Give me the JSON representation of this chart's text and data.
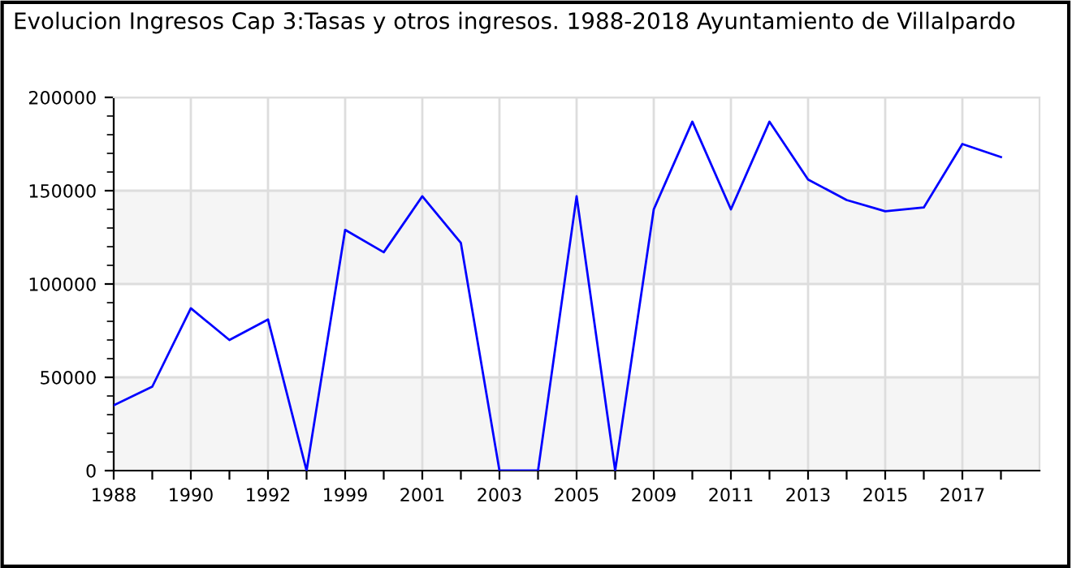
{
  "chart_data": {
    "type": "line",
    "title": "Evolucion Ingresos Cap 3:Tasas y otros ingresos. 1988-2018 Ayuntamiento de Villalpardo",
    "categories": [
      "1988",
      null,
      "1990",
      null,
      "1992",
      null,
      "1999",
      null,
      "2001",
      null,
      "2003",
      null,
      "2005",
      null,
      "2009",
      null,
      "2011",
      null,
      "2013",
      null,
      "2015",
      null,
      "2017",
      null
    ],
    "series": [
      {
        "color": "#0000ff",
        "values": [
          35000,
          45000,
          87000,
          70000,
          81000,
          0,
          129000,
          117000,
          147000,
          122000,
          0,
          0,
          147000,
          0,
          140000,
          187000,
          140000,
          187000,
          156000,
          145000,
          139000,
          141000,
          175000,
          168000
        ]
      }
    ],
    "ylim": [
      0,
      200000
    ],
    "yticks": [
      0,
      50000,
      100000,
      150000,
      200000
    ],
    "grid": true,
    "legend": false,
    "marker": "none",
    "line_style": "solid"
  }
}
